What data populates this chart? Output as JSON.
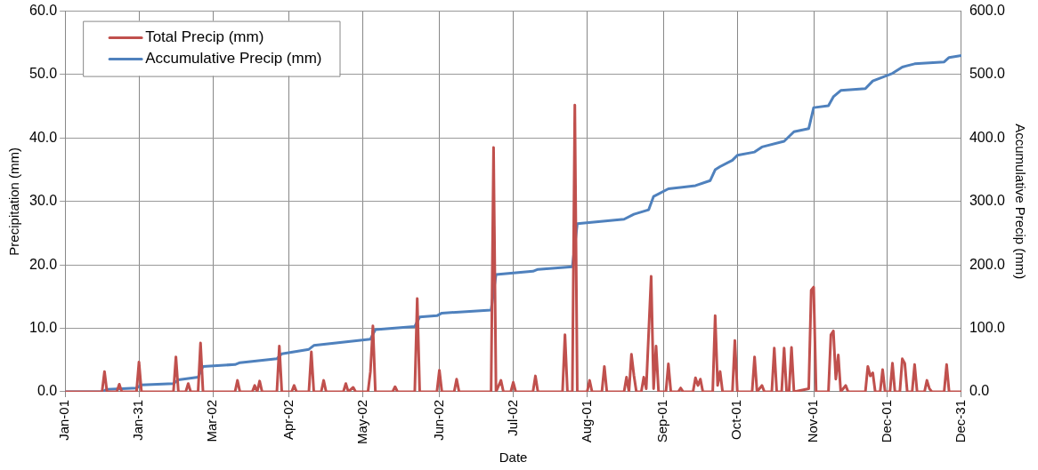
{
  "chart_data": {
    "type": "line",
    "xlabel": "Date",
    "ylabel": "Precipitation (mm)",
    "y2label": "Accumulative Precip (mm)",
    "xlim": [
      "--01-01",
      "--12-31"
    ],
    "xticks": [
      {
        "value": "--01-01",
        "label": "Jan-01"
      },
      {
        "value": "--01-31",
        "label": "Jan-31"
      },
      {
        "value": "--03-02",
        "label": "Mar-02"
      },
      {
        "value": "--04-02",
        "label": "Apr-02"
      },
      {
        "value": "--05-02",
        "label": "May-02"
      },
      {
        "value": "--06-02",
        "label": "Jun-02"
      },
      {
        "value": "--07-02",
        "label": "Jul-02"
      },
      {
        "value": "--08-01",
        "label": "Aug-01"
      },
      {
        "value": "--09-01",
        "label": "Sep-01"
      },
      {
        "value": "--10-01",
        "label": "Oct-01"
      },
      {
        "value": "--11-01",
        "label": "Nov-01"
      },
      {
        "value": "--12-01",
        "label": "Dec-01"
      },
      {
        "value": "--12-31",
        "label": "Dec-31"
      }
    ],
    "ylim": [
      0,
      60
    ],
    "yticks": [
      {
        "value": 0,
        "label": "0.0"
      },
      {
        "value": 10,
        "label": "10.0"
      },
      {
        "value": 20,
        "label": "20.0"
      },
      {
        "value": 30,
        "label": "30.0"
      },
      {
        "value": 40,
        "label": "40.0"
      },
      {
        "value": 50,
        "label": "50.0"
      },
      {
        "value": 60,
        "label": "60.0"
      }
    ],
    "y2lim": [
      0,
      600
    ],
    "y2ticks": [
      {
        "value": 0,
        "label": "0.0"
      },
      {
        "value": 100,
        "label": "100.0"
      },
      {
        "value": 200,
        "label": "200.0"
      },
      {
        "value": 300,
        "label": "300.0"
      },
      {
        "value": 400,
        "label": "400.0"
      },
      {
        "value": 500,
        "label": "500.0"
      },
      {
        "value": 600,
        "label": "600.0"
      }
    ],
    "grid": true,
    "legend": "top left",
    "marker": "none",
    "line_style": "solid",
    "series": [
      {
        "name": "Total Precip (mm)",
        "color": "#c0504d",
        "x": [
          "--01-01",
          "--01-16",
          "--01-17",
          "--01-18",
          "--01-22",
          "--01-23",
          "--01-24",
          "--01-30",
          "--01-31",
          "--02-01",
          "--02-14",
          "--02-15",
          "--02-16",
          "--02-19",
          "--02-20",
          "--02-21",
          "--02-24",
          "--02-25",
          "--02-26",
          "--03-11",
          "--03-12",
          "--03-13",
          "--03-18",
          "--03-19",
          "--03-20",
          "--03-21",
          "--03-22",
          "--03-28",
          "--03-29",
          "--03-30",
          "--04-03",
          "--04-04",
          "--04-05",
          "--04-10",
          "--04-11",
          "--04-12",
          "--04-15",
          "--04-16",
          "--04-17",
          "--04-24",
          "--04-25",
          "--04-26",
          "--04-28",
          "--04-29",
          "--05-04",
          "--05-05",
          "--05-06",
          "--05-07",
          "--05-14",
          "--05-15",
          "--05-16",
          "--05-23",
          "--05-24",
          "--05-25",
          "--06-01",
          "--06-02",
          "--06-03",
          "--06-08",
          "--06-09",
          "--06-10",
          "--06-23",
          "--06-24",
          "--06-25",
          "--06-27",
          "--06-28",
          "--07-01",
          "--07-02",
          "--07-03",
          "--07-10",
          "--07-11",
          "--07-12",
          "--07-22",
          "--07-23",
          "--07-24",
          "--07-26",
          "--07-27",
          "--07-28",
          "--08-01",
          "--08-02",
          "--08-03",
          "--08-07",
          "--08-08",
          "--08-09",
          "--08-16",
          "--08-17",
          "--08-18",
          "--08-19",
          "--08-20",
          "--08-21",
          "--08-23",
          "--08-24",
          "--08-25",
          "--08-27",
          "--08-28",
          "--08-29",
          "--08-30",
          "--09-02",
          "--09-03",
          "--09-04",
          "--09-07",
          "--09-08",
          "--09-09",
          "--09-13",
          "--09-14",
          "--09-15",
          "--09-16",
          "--09-17",
          "--09-21",
          "--09-22",
          "--09-23",
          "--09-24",
          "--09-25",
          "--09-29",
          "--09-30",
          "--10-01",
          "--10-07",
          "--10-08",
          "--10-09",
          "--10-11",
          "--10-12",
          "--10-15",
          "--10-16",
          "--10-17",
          "--10-19",
          "--10-20",
          "--10-21",
          "--10-22",
          "--10-23",
          "--10-24",
          "--10-30",
          "--10-31",
          "--11-01",
          "--11-02",
          "--11-07",
          "--11-08",
          "--11-09",
          "--11-10",
          "--11-11",
          "--11-12",
          "--11-14",
          "--11-15",
          "--11-22",
          "--11-23",
          "--11-24",
          "--11-25",
          "--11-26",
          "--11-28",
          "--11-29",
          "--11-30",
          "--12-02",
          "--12-03",
          "--12-04",
          "--12-06",
          "--12-07",
          "--12-08",
          "--12-09",
          "--12-11",
          "--12-12",
          "--12-13",
          "--12-16",
          "--12-17",
          "--12-18",
          "--12-19",
          "--12-24",
          "--12-25",
          "--12-26",
          "--12-31"
        ],
        "values": [
          0,
          0,
          3.2,
          0,
          0,
          1.2,
          0,
          0,
          4.7,
          0,
          0,
          5.5,
          0,
          0,
          1.3,
          0,
          0,
          7.7,
          0,
          0,
          1.8,
          0,
          0,
          1.0,
          0,
          1.7,
          0,
          0,
          7.2,
          0,
          0,
          1.0,
          0,
          0,
          6.3,
          0,
          0,
          1.8,
          0,
          0,
          1.3,
          0,
          0.7,
          0,
          0,
          3.2,
          10.4,
          0,
          0,
          0.8,
          0,
          0,
          14.7,
          0,
          0,
          3.4,
          0,
          0,
          2.0,
          0,
          0,
          38.5,
          0,
          1.8,
          0,
          0,
          1.5,
          0,
          0,
          2.5,
          0,
          0,
          9.0,
          0,
          0,
          45.2,
          0,
          0,
          1.8,
          0,
          0,
          4.0,
          0,
          0,
          2.3,
          0,
          5.9,
          2.6,
          0,
          0,
          2.3,
          0.5,
          18.2,
          0.5,
          7.2,
          0,
          0,
          4.4,
          0,
          0,
          0.6,
          0,
          0,
          2.2,
          1.0,
          2.0,
          0,
          0,
          12.0,
          1.0,
          3.2,
          0,
          0,
          8.1,
          0,
          0,
          5.5,
          0,
          1.0,
          0,
          0,
          6.9,
          0,
          0,
          6.9,
          0,
          0,
          7.0,
          0,
          0.5,
          16.0,
          16.5,
          0,
          0,
          9.0,
          9.6,
          2.0,
          5.8,
          0,
          1.0,
          0,
          0,
          4.0,
          2.5,
          3.0,
          0,
          0,
          3.5,
          0,
          0,
          4.5,
          0,
          0,
          5.2,
          4.5,
          0,
          0,
          4.3,
          0,
          0,
          1.8,
          0.5,
          0,
          0,
          4.3,
          0,
          0
        ]
      },
      {
        "name": "Accumulative Precip (mm)",
        "color": "#4f81bd",
        "axis": "y2",
        "x": [
          "--01-01",
          "--01-16",
          "--01-18",
          "--01-30",
          "--02-01",
          "--02-14",
          "--02-16",
          "--02-24",
          "--02-26",
          "--03-11",
          "--03-13",
          "--03-28",
          "--03-30",
          "--04-10",
          "--04-12",
          "--05-05",
          "--05-07",
          "--05-23",
          "--05-25",
          "--06-01",
          "--06-03",
          "--06-23",
          "--06-25",
          "--07-10",
          "--07-12",
          "--07-26",
          "--07-28",
          "--08-16",
          "--08-20",
          "--08-26",
          "--08-28",
          "--09-03",
          "--09-14",
          "--09-20",
          "--09-22",
          "--09-24",
          "--09-29",
          "--10-01",
          "--10-08",
          "--10-11",
          "--10-20",
          "--10-24",
          "--10-30",
          "--11-01",
          "--11-07",
          "--11-09",
          "--11-12",
          "--11-22",
          "--11-25",
          "--12-03",
          "--12-07",
          "--12-12",
          "--12-24",
          "--12-26",
          "--12-31"
        ],
        "values": [
          0,
          0,
          4,
          6,
          11,
          13,
          19,
          23,
          40,
          43,
          46,
          52,
          60,
          67,
          73,
          83,
          98,
          103,
          118,
          120,
          124,
          129,
          185,
          190,
          193,
          197,
          265,
          272,
          280,
          287,
          308,
          320,
          325,
          333,
          350,
          355,
          365,
          373,
          378,
          386,
          395,
          410,
          415,
          448,
          451,
          465,
          475,
          478,
          490,
          502,
          512,
          517,
          520,
          527,
          530
        ]
      }
    ]
  }
}
